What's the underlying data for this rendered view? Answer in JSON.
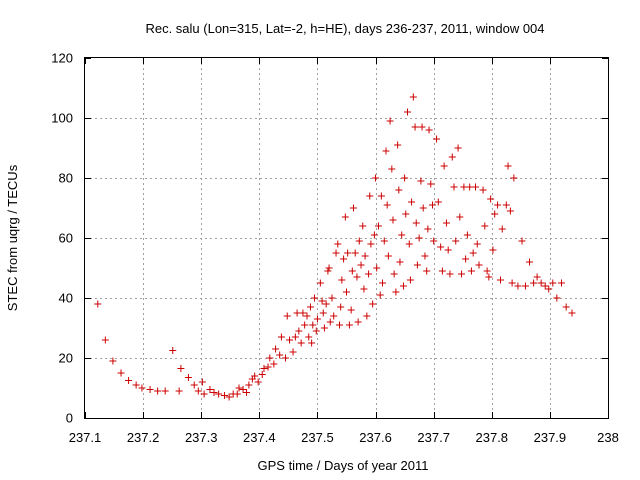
{
  "chart_data": {
    "type": "scatter",
    "title": "Rec. salu (Lon=315, Lat=-2, h=HE), days 236-237, 2011, window 004",
    "xlabel": "GPS time / Days of year 2011",
    "ylabel": "STEC from uqrg / TECUs",
    "xlim": [
      237.1,
      238.0
    ],
    "ylim": [
      0,
      120
    ],
    "xticks": [
      "237.1",
      "237.2",
      "237.3",
      "237.4",
      "237.5",
      "237.6",
      "237.7",
      "237.8",
      "237.9",
      "238"
    ],
    "yticks": [
      "0",
      "20",
      "40",
      "60",
      "80",
      "100",
      "120"
    ],
    "grid": true,
    "marker": "+",
    "color": "#cc0000",
    "series": [
      {
        "points": [
          [
            237.122,
            38
          ],
          [
            237.135,
            26
          ],
          [
            237.148,
            19
          ],
          [
            237.162,
            15
          ],
          [
            237.175,
            12.5
          ],
          [
            237.188,
            11
          ],
          [
            237.198,
            10
          ],
          [
            237.212,
            9.5
          ],
          [
            237.225,
            9
          ],
          [
            237.238,
            9
          ],
          [
            237.251,
            22.5
          ],
          [
            237.262,
            9
          ],
          [
            237.265,
            16.5
          ],
          [
            237.278,
            13.5
          ],
          [
            237.288,
            11
          ],
          [
            237.295,
            9
          ],
          [
            237.302,
            12
          ],
          [
            237.305,
            8
          ],
          [
            237.315,
            9.5
          ],
          [
            237.322,
            8.5
          ],
          [
            237.33,
            8
          ],
          [
            237.34,
            7.5
          ],
          [
            237.348,
            7
          ],
          [
            237.355,
            8
          ],
          [
            237.362,
            8
          ],
          [
            237.365,
            10
          ],
          [
            237.372,
            9.5
          ],
          [
            237.378,
            8.5
          ],
          [
            237.382,
            11
          ],
          [
            237.388,
            13
          ],
          [
            237.392,
            14
          ],
          [
            237.398,
            12
          ],
          [
            237.405,
            14.5
          ],
          [
            237.408,
            16.5
          ],
          [
            237.415,
            17
          ],
          [
            237.418,
            20
          ],
          [
            237.425,
            18
          ],
          [
            237.428,
            23
          ],
          [
            237.435,
            21
          ],
          [
            237.438,
            27
          ],
          [
            237.445,
            20
          ],
          [
            237.448,
            34
          ],
          [
            237.452,
            26
          ],
          [
            237.458,
            22
          ],
          [
            237.462,
            27
          ],
          [
            237.465,
            35
          ],
          [
            237.468,
            29
          ],
          [
            237.472,
            25
          ],
          [
            237.475,
            35
          ],
          [
            237.478,
            31
          ],
          [
            237.482,
            34
          ],
          [
            237.485,
            27
          ],
          [
            237.488,
            37
          ],
          [
            237.49,
            25
          ],
          [
            237.492,
            31
          ],
          [
            237.495,
            40
          ],
          [
            237.498,
            29
          ],
          [
            237.5,
            33
          ],
          [
            237.505,
            45
          ],
          [
            237.508,
            39
          ],
          [
            237.51,
            35
          ],
          [
            237.512,
            30
          ],
          [
            237.515,
            38
          ],
          [
            237.518,
            49
          ],
          [
            237.52,
            50
          ],
          [
            237.522,
            32
          ],
          [
            237.525,
            40
          ],
          [
            237.528,
            34
          ],
          [
            237.532,
            55
          ],
          [
            237.535,
            58
          ],
          [
            237.538,
            31
          ],
          [
            237.54,
            37
          ],
          [
            237.542,
            46
          ],
          [
            237.545,
            53
          ],
          [
            237.548,
            67
          ],
          [
            237.55,
            42
          ],
          [
            237.552,
            55
          ],
          [
            237.555,
            31
          ],
          [
            237.558,
            36
          ],
          [
            237.56,
            49
          ],
          [
            237.562,
            70
          ],
          [
            237.565,
            55
          ],
          [
            237.568,
            47
          ],
          [
            237.57,
            32
          ],
          [
            237.572,
            59
          ],
          [
            237.575,
            51
          ],
          [
            237.578,
            64
          ],
          [
            237.58,
            43
          ],
          [
            237.582,
            54
          ],
          [
            237.585,
            34
          ],
          [
            237.588,
            48
          ],
          [
            237.59,
            74
          ],
          [
            237.592,
            58
          ],
          [
            237.595,
            38
          ],
          [
            237.598,
            61
          ],
          [
            237.6,
            80
          ],
          [
            237.602,
            50
          ],
          [
            237.605,
            64
          ],
          [
            237.608,
            41
          ],
          [
            237.61,
            74
          ],
          [
            237.612,
            45
          ],
          [
            237.615,
            59
          ],
          [
            237.618,
            89
          ],
          [
            237.62,
            71
          ],
          [
            237.622,
            54
          ],
          [
            237.625,
            99
          ],
          [
            237.628,
            83
          ],
          [
            237.63,
            66
          ],
          [
            237.632,
            48
          ],
          [
            237.635,
            42
          ],
          [
            237.638,
            91
          ],
          [
            237.64,
            76
          ],
          [
            237.642,
            52
          ],
          [
            237.645,
            61
          ],
          [
            237.648,
            44
          ],
          [
            237.65,
            80
          ],
          [
            237.652,
            68
          ],
          [
            237.655,
            102
          ],
          [
            237.658,
            58
          ],
          [
            237.66,
            46
          ],
          [
            237.662,
            72
          ],
          [
            237.665,
            107
          ],
          [
            237.668,
            97
          ],
          [
            237.67,
            65
          ],
          [
            237.672,
            51
          ],
          [
            237.675,
            60
          ],
          [
            237.678,
            79
          ],
          [
            237.68,
            97
          ],
          [
            237.682,
            70
          ],
          [
            237.685,
            54
          ],
          [
            237.688,
            49
          ],
          [
            237.69,
            63
          ],
          [
            237.692,
            96
          ],
          [
            237.695,
            78
          ],
          [
            237.698,
            71
          ],
          [
            237.7,
            59
          ],
          [
            237.705,
            93
          ],
          [
            237.708,
            72
          ],
          [
            237.712,
            57
          ],
          [
            237.715,
            49
          ],
          [
            237.718,
            84
          ],
          [
            237.722,
            65
          ],
          [
            237.725,
            56
          ],
          [
            237.728,
            48
          ],
          [
            237.732,
            87
          ],
          [
            237.735,
            77
          ],
          [
            237.738,
            59
          ],
          [
            237.742,
            90
          ],
          [
            237.745,
            67
          ],
          [
            237.748,
            48
          ],
          [
            237.752,
            77
          ],
          [
            237.755,
            53
          ],
          [
            237.758,
            61
          ],
          [
            237.762,
            77
          ],
          [
            237.765,
            49
          ],
          [
            237.768,
            55
          ],
          [
            237.772,
            77
          ],
          [
            237.775,
            58
          ],
          [
            237.778,
            51
          ],
          [
            237.785,
            76
          ],
          [
            237.788,
            64
          ],
          [
            237.792,
            49
          ],
          [
            237.795,
            47
          ],
          [
            237.798,
            73
          ],
          [
            237.802,
            56
          ],
          [
            237.805,
            68
          ],
          [
            237.81,
            71
          ],
          [
            237.815,
            46
          ],
          [
            237.818,
            63
          ],
          [
            237.825,
            71
          ],
          [
            237.828,
            84
          ],
          [
            237.832,
            69
          ],
          [
            237.835,
            45
          ],
          [
            237.838,
            80
          ],
          [
            237.845,
            44
          ],
          [
            237.852,
            59
          ],
          [
            237.858,
            44
          ],
          [
            237.865,
            52
          ],
          [
            237.872,
            45
          ],
          [
            237.878,
            47
          ],
          [
            237.885,
            45
          ],
          [
            237.892,
            44
          ],
          [
            237.898,
            43
          ],
          [
            237.905,
            45
          ],
          [
            237.912,
            40
          ],
          [
            237.92,
            45
          ],
          [
            237.928,
            37
          ],
          [
            237.938,
            35
          ]
        ]
      }
    ]
  }
}
